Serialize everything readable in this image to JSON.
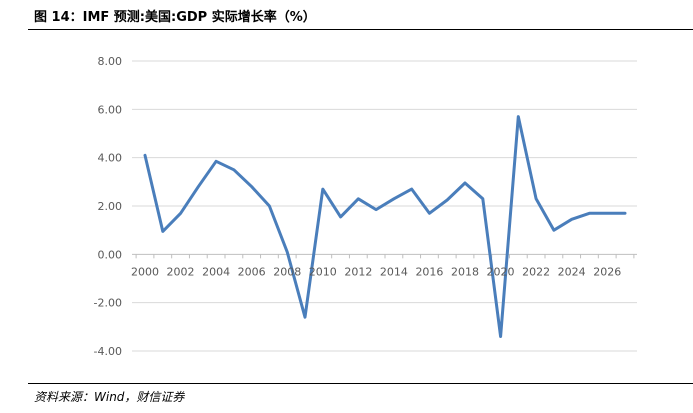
{
  "title": "图 14：IMF 预测:美国:GDP 实际增长率（%）",
  "source": "资料来源：Wind，财信证券",
  "chart_data": {
    "type": "line",
    "x": [
      2000,
      2001,
      2002,
      2003,
      2004,
      2005,
      2006,
      2007,
      2008,
      2009,
      2010,
      2011,
      2012,
      2013,
      2014,
      2015,
      2016,
      2017,
      2018,
      2019,
      2020,
      2021,
      2022,
      2023,
      2024,
      2025,
      2026,
      2027
    ],
    "series": [
      {
        "values": [
          4.1,
          0.95,
          1.7,
          2.8,
          3.85,
          3.5,
          2.8,
          2.0,
          0.1,
          -2.6,
          2.7,
          1.55,
          2.3,
          1.85,
          2.3,
          2.7,
          1.7,
          2.25,
          2.95,
          2.3,
          -3.4,
          5.7,
          2.3,
          1.0,
          1.45,
          1.7,
          1.7,
          1.7
        ],
        "color": "#4a7ebb"
      }
    ],
    "x_tick_labels": [
      "2000",
      "2002",
      "2004",
      "2006",
      "2008",
      "2010",
      "2012",
      "2014",
      "2016",
      "2018",
      "2020",
      "2022",
      "2024",
      "2026"
    ],
    "y_tick_labels": [
      "8.00",
      "6.00",
      "4.00",
      "2.00",
      "0.00",
      "-2.00",
      "-4.00"
    ],
    "ylim": [
      -4,
      8
    ],
    "xlim": [
      2000,
      2027
    ],
    "grid": "horizontal",
    "colors": {
      "gridline": "#d9d9d9",
      "axis": "#bfbfbf",
      "tick_text": "#595959"
    }
  }
}
